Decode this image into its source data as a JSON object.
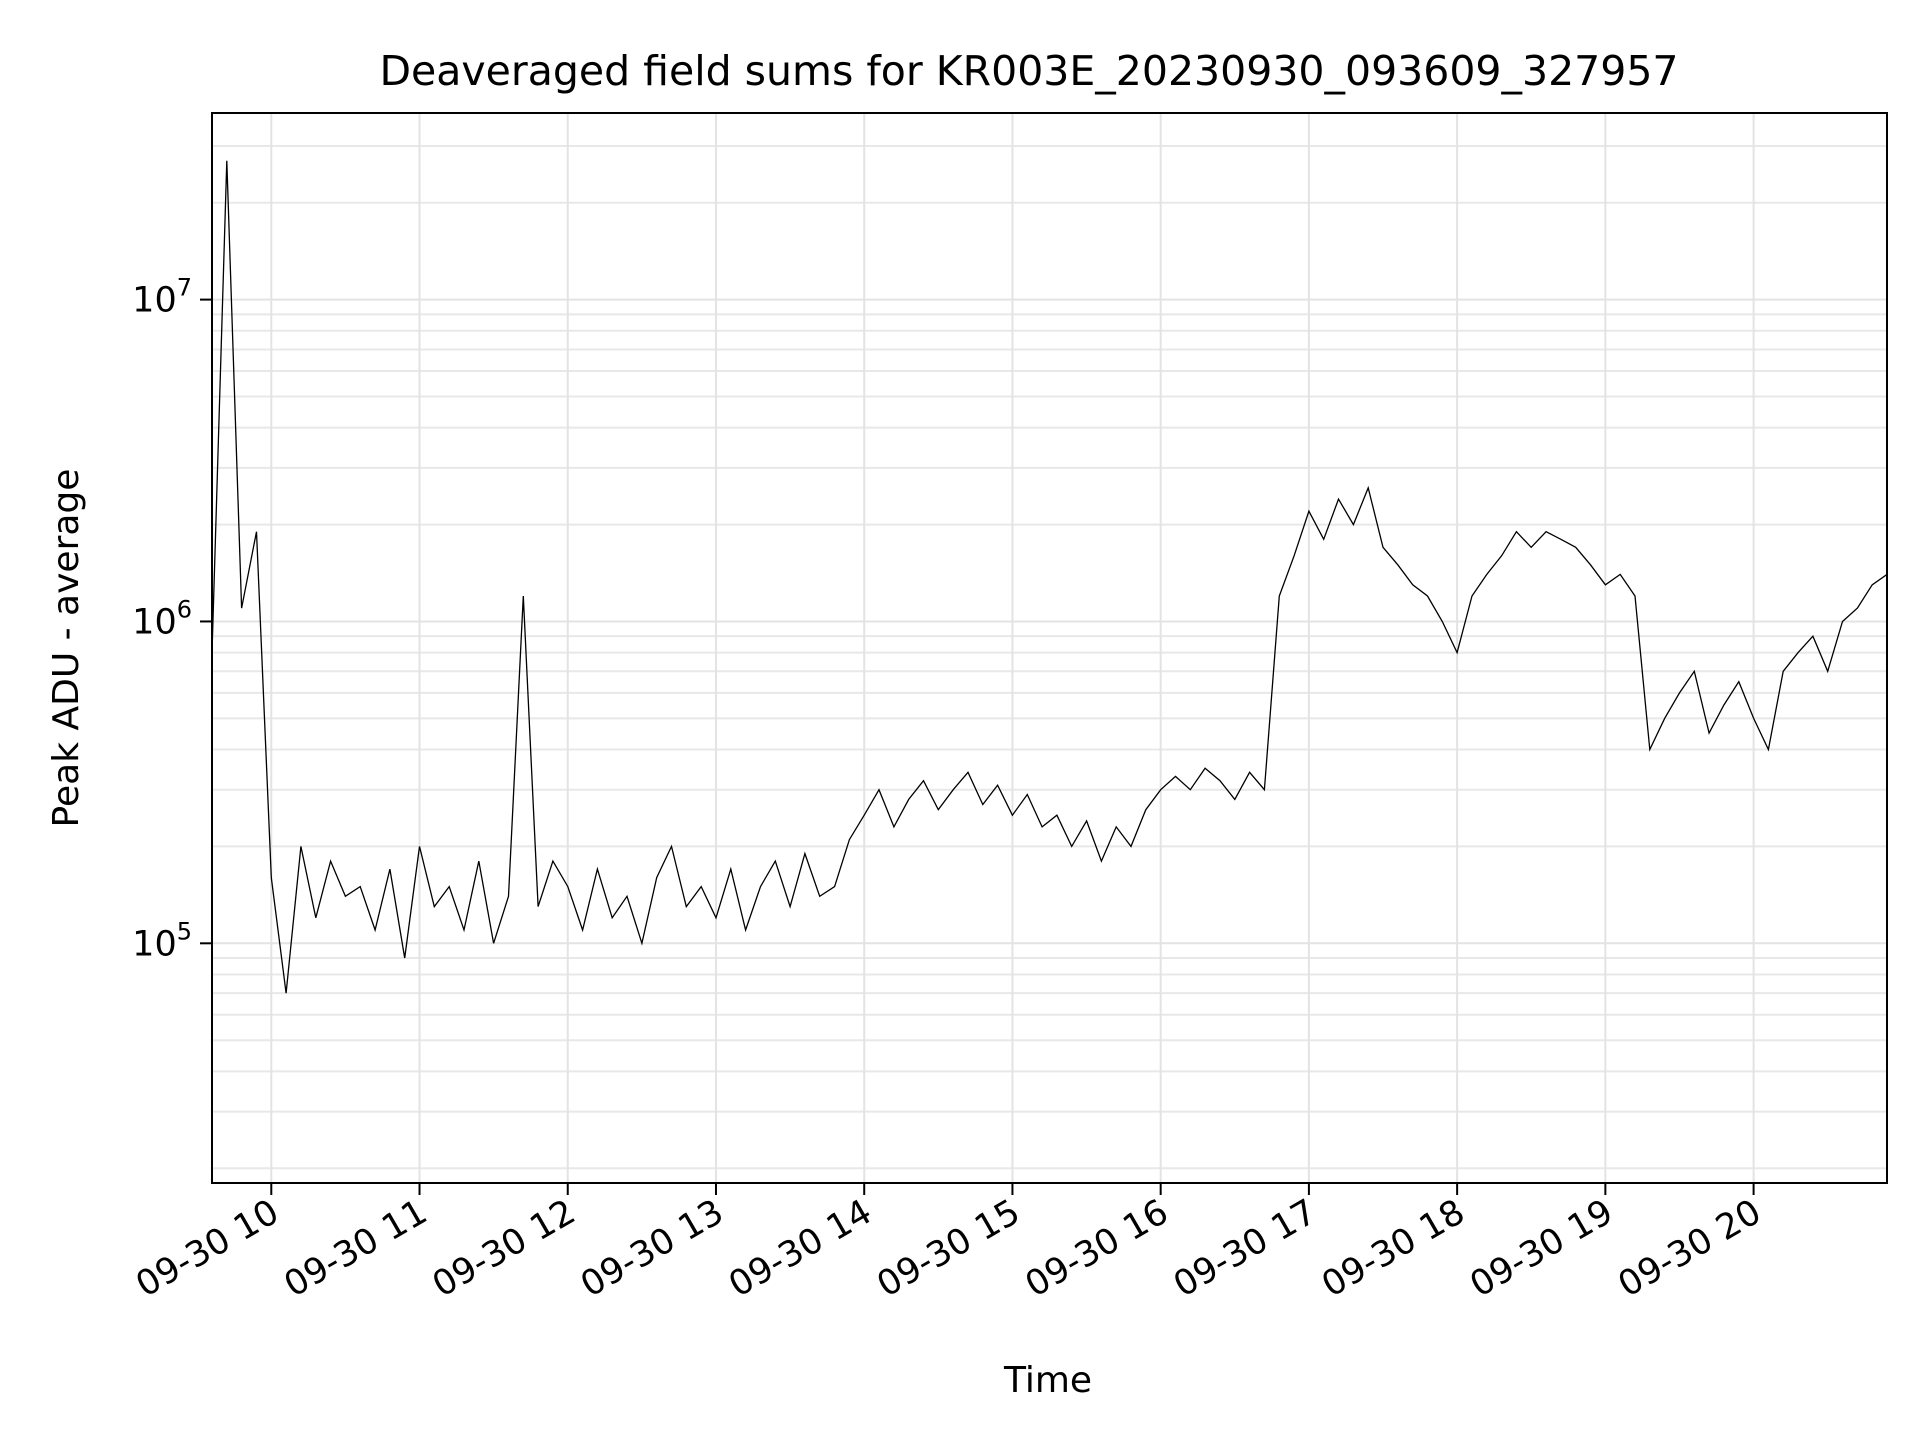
{
  "chart_data": {
    "type": "line",
    "title": "Deaveraged field sums for KR003E_20230930_093609_327957",
    "xlabel": "Time",
    "ylabel": "Peak ADU - average",
    "yscale": "log",
    "ylim": [
      18000,
      38000000
    ],
    "xlim": [
      "2023-09-30 09:36",
      "2023-09-30 20:54"
    ],
    "grid": true,
    "x_ticks": [
      "09-30 10",
      "09-30 11",
      "09-30 12",
      "09-30 13",
      "09-30 14",
      "09-30 15",
      "09-30 16",
      "09-30 17",
      "09-30 18",
      "09-30 19",
      "09-30 20"
    ],
    "y_ticks": [
      {
        "value": 100000,
        "base": "10",
        "exp": "5"
      },
      {
        "value": 1000000,
        "base": "10",
        "exp": "6"
      },
      {
        "value": 10000000,
        "base": "10",
        "exp": "7"
      }
    ],
    "series": [
      {
        "color": "#000000",
        "x": [
          "2023-09-30 09:36",
          "2023-09-30 09:42",
          "2023-09-30 09:48",
          "2023-09-30 09:54",
          "2023-09-30 10:00",
          "2023-09-30 10:06",
          "2023-09-30 10:12",
          "2023-09-30 10:18",
          "2023-09-30 10:24",
          "2023-09-30 10:30",
          "2023-09-30 10:36",
          "2023-09-30 10:42",
          "2023-09-30 10:48",
          "2023-09-30 10:54",
          "2023-09-30 11:00",
          "2023-09-30 11:06",
          "2023-09-30 11:12",
          "2023-09-30 11:18",
          "2023-09-30 11:24",
          "2023-09-30 11:30",
          "2023-09-30 11:36",
          "2023-09-30 11:42",
          "2023-09-30 11:48",
          "2023-09-30 11:54",
          "2023-09-30 12:00",
          "2023-09-30 12:06",
          "2023-09-30 12:12",
          "2023-09-30 12:18",
          "2023-09-30 12:24",
          "2023-09-30 12:30",
          "2023-09-30 12:36",
          "2023-09-30 12:42",
          "2023-09-30 12:48",
          "2023-09-30 12:54",
          "2023-09-30 13:00",
          "2023-09-30 13:06",
          "2023-09-30 13:12",
          "2023-09-30 13:18",
          "2023-09-30 13:24",
          "2023-09-30 13:30",
          "2023-09-30 13:36",
          "2023-09-30 13:42",
          "2023-09-30 13:48",
          "2023-09-30 13:54",
          "2023-09-30 14:00",
          "2023-09-30 14:06",
          "2023-09-30 14:12",
          "2023-09-30 14:18",
          "2023-09-30 14:24",
          "2023-09-30 14:30",
          "2023-09-30 14:36",
          "2023-09-30 14:42",
          "2023-09-30 14:48",
          "2023-09-30 14:54",
          "2023-09-30 15:00",
          "2023-09-30 15:06",
          "2023-09-30 15:12",
          "2023-09-30 15:18",
          "2023-09-30 15:24",
          "2023-09-30 15:30",
          "2023-09-30 15:36",
          "2023-09-30 15:42",
          "2023-09-30 15:48",
          "2023-09-30 15:54",
          "2023-09-30 16:00",
          "2023-09-30 16:06",
          "2023-09-30 16:12",
          "2023-09-30 16:18",
          "2023-09-30 16:24",
          "2023-09-30 16:30",
          "2023-09-30 16:36",
          "2023-09-30 16:42",
          "2023-09-30 16:48",
          "2023-09-30 16:54",
          "2023-09-30 17:00",
          "2023-09-30 17:06",
          "2023-09-30 17:12",
          "2023-09-30 17:18",
          "2023-09-30 17:24",
          "2023-09-30 17:30",
          "2023-09-30 17:36",
          "2023-09-30 17:42",
          "2023-09-30 17:48",
          "2023-09-30 17:54",
          "2023-09-30 18:00",
          "2023-09-30 18:06",
          "2023-09-30 18:12",
          "2023-09-30 18:18",
          "2023-09-30 18:24",
          "2023-09-30 18:30",
          "2023-09-30 18:36",
          "2023-09-30 18:42",
          "2023-09-30 18:48",
          "2023-09-30 18:54",
          "2023-09-30 19:00",
          "2023-09-30 19:06",
          "2023-09-30 19:12",
          "2023-09-30 19:18",
          "2023-09-30 19:24",
          "2023-09-30 19:30",
          "2023-09-30 19:36",
          "2023-09-30 19:42",
          "2023-09-30 19:48",
          "2023-09-30 19:54",
          "2023-09-30 20:00",
          "2023-09-30 20:06",
          "2023-09-30 20:12",
          "2023-09-30 20:18",
          "2023-09-30 20:24",
          "2023-09-30 20:30",
          "2023-09-30 20:36",
          "2023-09-30 20:42",
          "2023-09-30 20:48",
          "2023-09-30 20:54"
        ],
        "y": [
          800000,
          27000000,
          1100000,
          1900000,
          160000,
          70000,
          200000,
          120000,
          180000,
          140000,
          150000,
          110000,
          170000,
          90000,
          200000,
          130000,
          150000,
          110000,
          180000,
          100000,
          140000,
          1200000,
          130000,
          180000,
          150000,
          110000,
          170000,
          120000,
          140000,
          100000,
          160000,
          200000,
          130000,
          150000,
          120000,
          170000,
          110000,
          150000,
          180000,
          130000,
          190000,
          140000,
          150000,
          210000,
          250000,
          300000,
          230000,
          280000,
          320000,
          260000,
          300000,
          340000,
          270000,
          310000,
          250000,
          290000,
          230000,
          250000,
          200000,
          240000,
          180000,
          230000,
          200000,
          260000,
          300000,
          330000,
          300000,
          350000,
          320000,
          280000,
          340000,
          300000,
          1200000,
          1600000,
          2200000,
          1800000,
          2400000,
          2000000,
          2600000,
          1700000,
          1500000,
          1300000,
          1200000,
          1000000,
          800000,
          1200000,
          1400000,
          1600000,
          1900000,
          1700000,
          1900000,
          1800000,
          1700000,
          1500000,
          1300000,
          1400000,
          1200000,
          400000,
          500000,
          600000,
          700000,
          450000,
          550000,
          650000,
          500000,
          400000,
          700000,
          800000,
          900000,
          700000,
          1000000,
          1100000,
          1300000,
          1400000
        ]
      }
    ]
  }
}
